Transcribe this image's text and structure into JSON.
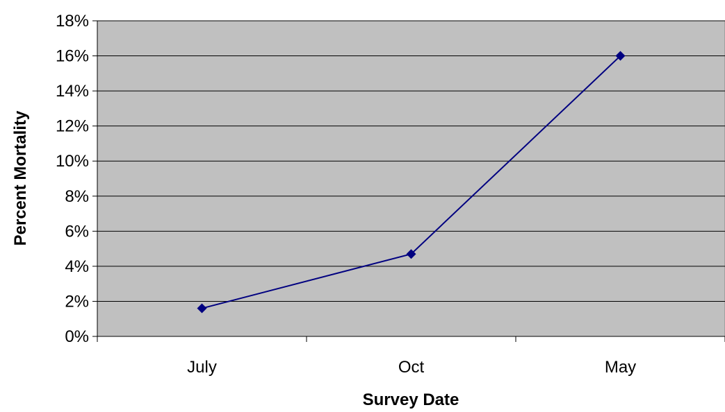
{
  "chart_data": {
    "type": "line",
    "title": "",
    "xlabel": "Survey Date",
    "ylabel": "Percent Mortality",
    "categories": [
      "July",
      "Oct",
      "May"
    ],
    "series": [
      {
        "values": [
          1.6,
          4.7,
          16.0
        ]
      }
    ],
    "ylim": [
      0,
      18
    ],
    "ytick_step": 2,
    "ytick_labels": [
      "0%",
      "2%",
      "4%",
      "6%",
      "8%",
      "10%",
      "12%",
      "14%",
      "16%",
      "18%"
    ],
    "grid": true,
    "legend": "none",
    "marker": "diamond"
  },
  "colors": {
    "plot_background": "#c0c0c0",
    "gridline": "#000000",
    "series_line": "#000080",
    "series_marker": "#000080"
  }
}
